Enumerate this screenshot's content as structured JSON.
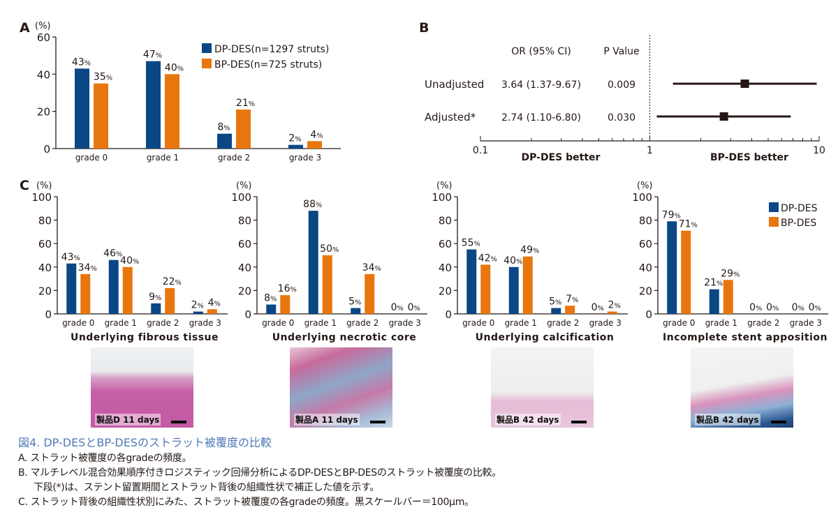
{
  "colors": {
    "dp": "#0b4785",
    "bp": "#e8760e",
    "caption_title": "#4f79b5"
  },
  "panelA": {
    "letter": "A",
    "chart_data": {
      "type": "bar",
      "ylabel": "(%)",
      "ylim": [
        0,
        60
      ],
      "yticks": [
        0,
        20,
        40,
        60
      ],
      "categories": [
        "grade 0",
        "grade 1",
        "grade 2",
        "grade 3"
      ],
      "series": [
        {
          "name": "DP-DES(n=1297 struts)",
          "values": [
            43,
            47,
            8,
            2
          ],
          "labels": [
            "43",
            "47",
            "8",
            "2"
          ]
        },
        {
          "name": "BP-DES(n=725 struts)",
          "values": [
            35,
            40,
            21,
            4
          ],
          "labels": [
            "35",
            "40",
            "21",
            "4"
          ]
        }
      ],
      "unit_suffix": "%",
      "legend": "top-right"
    }
  },
  "panelB": {
    "letter": "B",
    "chart_data": {
      "type": "forest",
      "header_or": "OR (95% CI)",
      "header_p": "P Value",
      "xscale": "log",
      "xlim": [
        0.1,
        10
      ],
      "xticks": [
        "0.1",
        "1",
        "10"
      ],
      "reference_line": 1,
      "left_label": "DP-DES better",
      "right_label": "BP-DES better",
      "rows": [
        {
          "label": "Unadjusted",
          "or_text": "3.64 (1.37-9.67)",
          "p": "0.009",
          "or": 3.64,
          "lo": 1.37,
          "hi": 9.67
        },
        {
          "label": "Adjusted*",
          "or_text": "2.74 (1.10-6.80)",
          "p": "0.030",
          "or": 2.74,
          "lo": 1.1,
          "hi": 6.8
        }
      ]
    }
  },
  "panelC": {
    "letter": "C",
    "legend": [
      "DP-DES",
      "BP-DES"
    ],
    "chart_data": [
      {
        "type": "bar",
        "title": "Underlying fibrous tissue",
        "ylabel": "(%)",
        "ylim": [
          0,
          100
        ],
        "yticks": [
          0,
          20,
          40,
          60,
          80,
          100
        ],
        "categories": [
          "grade 0",
          "grade 1",
          "grade 2",
          "grade 3"
        ],
        "series": [
          {
            "name": "DP-DES",
            "values": [
              43,
              46,
              9,
              2
            ]
          },
          {
            "name": "BP-DES",
            "values": [
              34,
              40,
              22,
              4
            ]
          }
        ]
      },
      {
        "type": "bar",
        "title": "Underlying necrotic core",
        "ylabel": "(%)",
        "ylim": [
          0,
          100
        ],
        "yticks": [
          0,
          20,
          40,
          60,
          80,
          100
        ],
        "categories": [
          "grade 0",
          "grade 1",
          "grade 2",
          "grade 3"
        ],
        "series": [
          {
            "name": "DP-DES",
            "values": [
              8,
              88,
              5,
              0
            ]
          },
          {
            "name": "BP-DES",
            "values": [
              16,
              50,
              34,
              0
            ]
          }
        ]
      },
      {
        "type": "bar",
        "title": "Underlying calcification",
        "ylabel": "(%)",
        "ylim": [
          0,
          100
        ],
        "yticks": [
          0,
          20,
          40,
          60,
          80,
          100
        ],
        "categories": [
          "grade 0",
          "grade 1",
          "grade 2",
          "grade 3"
        ],
        "series": [
          {
            "name": "DP-DES",
            "values": [
              55,
              40,
              5,
              0
            ]
          },
          {
            "name": "BP-DES",
            "values": [
              42,
              49,
              7,
              2
            ]
          }
        ]
      },
      {
        "type": "bar",
        "title": "Incomplete stent apposition",
        "ylabel": "(%)",
        "ylim": [
          0,
          100
        ],
        "yticks": [
          0,
          20,
          40,
          60,
          80,
          100
        ],
        "categories": [
          "grade 0",
          "grade 1",
          "grade 2",
          "grade 3"
        ],
        "series": [
          {
            "name": "DP-DES",
            "values": [
              79,
              21,
              0,
              0
            ]
          },
          {
            "name": "BP-DES",
            "values": [
              71,
              29,
              0,
              0
            ]
          }
        ]
      }
    ],
    "micrographs": [
      {
        "label": "製品D 11 days"
      },
      {
        "label": "製品A 11 days"
      },
      {
        "label": "製品B 42 days"
      },
      {
        "label": "製品B 42 days"
      }
    ]
  },
  "caption": {
    "title": "図4. DP-DESとBP-DESのストラット被覆度の比較",
    "lines": [
      "A. ストラット被覆度の各gradeの頻度。",
      "B. マルチレベル混合効果順序付きロジスティック回帰分析によるDP-DESとBP-DESのストラット被覆度の比較。",
      "下段(*)は、ステント留置期間とストラット背後の組織性状で補正した値を示す。",
      "C. ストラット背後の組織性状別にみた、ストラット被覆度の各gradeの頻度。黒スケールバー＝100μm。"
    ]
  }
}
